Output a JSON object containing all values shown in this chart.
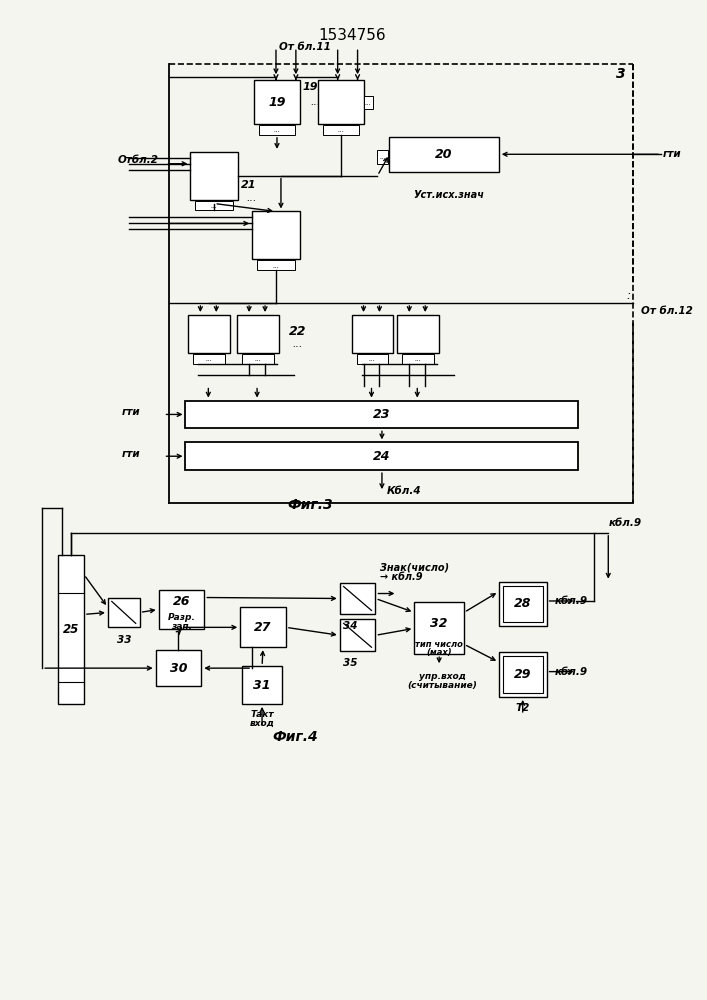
{
  "title": "1534756",
  "bg_color": "#f5f5f0",
  "fig3_caption": "Фиг.3",
  "fig4_caption": "Фиг.4",
  "label_19": "19",
  "label_20": "20",
  "label_21": "21",
  "label_22": "22",
  "label_23": "23",
  "label_24": "24",
  "label_25": "25",
  "label_26": "26",
  "label_27": "27",
  "label_28": "28",
  "label_29": "29",
  "label_30": "30",
  "label_31": "31",
  "label_32": "32",
  "label_33": "33",
  "label_34": "34",
  "label_35": "35",
  "text_otbl11": "От бл.11",
  "text_otbl2": "Отбл.2",
  "text_otbl12": "От бл.12",
  "text_gti": "гти",
  "text_ust": "Уст.исх.знач",
  "text_kbl4": "Кбл.4",
  "text_kbl9": "кбл.9",
  "text_znak": "Знак(число)",
  "text_razr": "Разр.",
  "text_zap": "зап.",
  "text_takt": "Такт",
  "text_vhod": "вход",
  "text_tip": "тип число",
  "text_max": "(мах)",
  "text_upr": "упр.вход",
  "text_schit": "(считывание)",
  "text_T2": "T2",
  "label_3": "3"
}
